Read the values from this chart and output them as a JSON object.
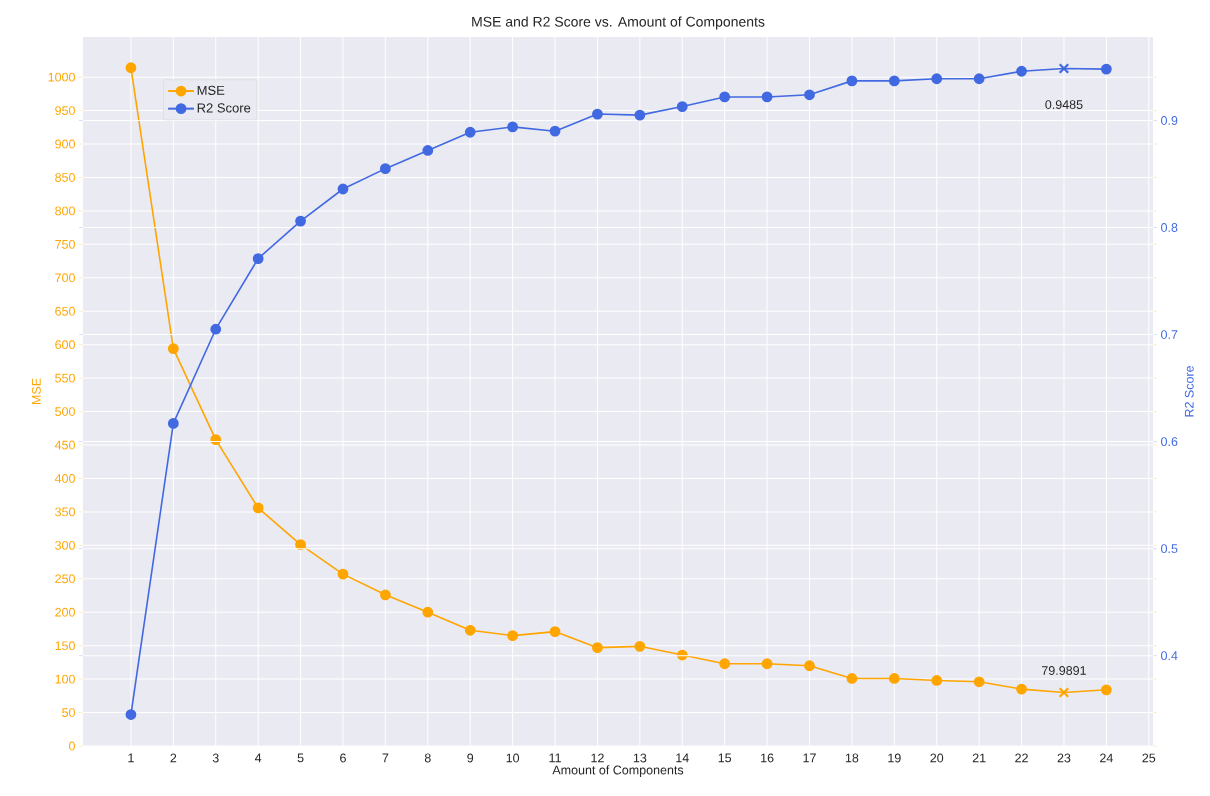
{
  "chart_data": {
    "type": "line",
    "title": "MSE and R2 Score vs. Amount of Components",
    "xlabel": "Amount of Components",
    "ylabel": "MSE",
    "y2label": "R2 Score",
    "x": [
      1,
      2,
      3,
      4,
      5,
      6,
      7,
      8,
      9,
      10,
      11,
      12,
      13,
      14,
      15,
      16,
      17,
      18,
      19,
      20,
      21,
      22,
      23,
      24
    ],
    "series": [
      {
        "name": "MSE",
        "color": "#ffa500",
        "values": [
          1014,
          594,
          458,
          356,
          301,
          257,
          226,
          200,
          173,
          165,
          171,
          147,
          149,
          136,
          123,
          123,
          120,
          101,
          101,
          98,
          96,
          85,
          79.9891,
          84
        ]
      },
      {
        "name": "R2 Score",
        "color": "#4169e1",
        "axis": "y2",
        "values": [
          0.345,
          0.617,
          0.705,
          0.771,
          0.806,
          0.836,
          0.855,
          0.872,
          0.889,
          0.894,
          0.89,
          0.906,
          0.905,
          0.913,
          0.922,
          0.922,
          0.924,
          0.937,
          0.937,
          0.939,
          0.939,
          0.946,
          0.9485,
          0.948
        ]
      },
      {
        "type": "scatter",
        "marker": "cross",
        "color": "#ffa500",
        "x": [
          23
        ],
        "values": [
          79.9891
        ]
      },
      {
        "type": "scatter",
        "marker": "cross",
        "color": "#4169e1",
        "axis": "y2",
        "x": [
          23
        ],
        "values": [
          0.9485
        ]
      }
    ],
    "marker": "circle",
    "line_style": "solid",
    "grid": true,
    "legend": "top left",
    "xlim": [
      -0.13,
      25.1
    ],
    "ylim": [
      0,
      1060
    ],
    "y2lim": [
      0.3156,
      0.978
    ],
    "xticks": [
      1,
      2,
      3,
      4,
      5,
      6,
      7,
      8,
      9,
      10,
      11,
      12,
      13,
      14,
      15,
      16,
      17,
      18,
      19,
      20,
      21,
      22,
      23,
      24,
      25
    ],
    "yticks": [
      0,
      50,
      100,
      150,
      200,
      250,
      300,
      350,
      400,
      450,
      500,
      550,
      600,
      650,
      700,
      750,
      800,
      850,
      900,
      950,
      1000
    ],
    "y2ticks": [
      0.4,
      0.5,
      0.6,
      0.7,
      0.8,
      0.9
    ],
    "annotations": [
      {
        "text": "79.9891",
        "x": 23,
        "y": 79.9891
      },
      "0.9485"
    ]
  }
}
